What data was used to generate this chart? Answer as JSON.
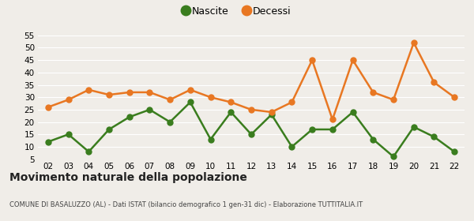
{
  "years": [
    "02",
    "03",
    "04",
    "05",
    "06",
    "07",
    "08",
    "09",
    "10",
    "11",
    "12",
    "13",
    "14",
    "15",
    "16",
    "17",
    "18",
    "19",
    "20",
    "21",
    "22"
  ],
  "nascite": [
    12,
    15,
    8,
    17,
    22,
    25,
    20,
    28,
    13,
    24,
    15,
    23,
    10,
    17,
    17,
    24,
    13,
    6,
    18,
    14,
    8
  ],
  "decessi": [
    26,
    29,
    33,
    31,
    32,
    32,
    29,
    33,
    30,
    28,
    25,
    24,
    28,
    45,
    21,
    45,
    32,
    29,
    52,
    36,
    30
  ],
  "nascite_color": "#3a7d1e",
  "decessi_color": "#e87722",
  "bg_color": "#f0ede8",
  "grid_color": "#ffffff",
  "ylim": [
    5,
    55
  ],
  "yticks": [
    5,
    10,
    15,
    20,
    25,
    30,
    35,
    40,
    45,
    50,
    55
  ],
  "title": "Movimento naturale della popolazione",
  "subtitle": "COMUNE DI BASALUZZO (AL) - Dati ISTAT (bilancio demografico 1 gen-31 dic) - Elaborazione TUTTITALIA.IT",
  "legend_nascite": "Nascite",
  "legend_decessi": "Decessi",
  "marker_size": 5,
  "line_width": 1.8
}
